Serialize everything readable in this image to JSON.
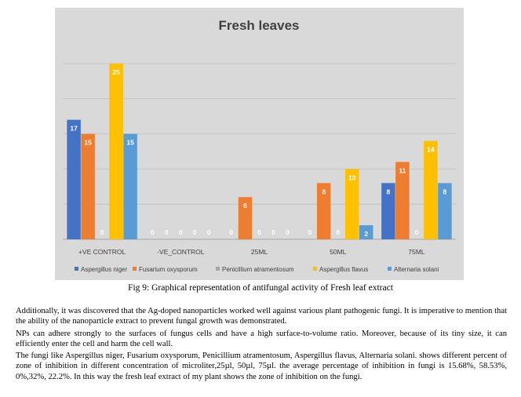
{
  "chart_data": {
    "type": "bar",
    "title": "Fresh leaves",
    "categories": [
      "+VE CONTROL",
      "-VE_CONTROL",
      "25ML",
      "50ML",
      "75ML"
    ],
    "series": [
      {
        "name": "Aspergillus niger",
        "color": "#4472c4",
        "values": [
          17,
          0,
          0,
          0,
          8
        ]
      },
      {
        "name": "Fusarium oxysporum",
        "color": "#ed7d31",
        "values": [
          15,
          0,
          6,
          8,
          11
        ]
      },
      {
        "name": "Penicillium atramentosum",
        "color": "#a5a5a5",
        "values": [
          0,
          0,
          0,
          0,
          0
        ]
      },
      {
        "name": "Aspergillus flavus",
        "color": "#ffc000",
        "values": [
          25,
          0,
          0,
          10,
          14
        ]
      },
      {
        "name": "Alternaria solani",
        "color": "#5b9bd5",
        "values": [
          15,
          0,
          0,
          2,
          8
        ]
      }
    ],
    "ylim": [
      0,
      25
    ],
    "grid": true,
    "legend": "bottom",
    "background": "#d9d9d9"
  },
  "caption": "Fig 9:  Graphical representation of antifungal activity of Fresh leaf extract",
  "paragraphs": [
    "Additionally, it was discovered that the Ag-doped nanoparticles worked well against various plant pathogenic fungi. It is imperative to mention that the ability of the nanoparticle extract to prevent fungal growth was demonstrated.",
    "NPs can adhere strongly to the surfaces of fungus cells and have a high surface-to-volume ratio. Moreover, because of its tiny size, it can efficiently enter the cell and harm the cell wall.",
    "The fungi like Aspergillus niger, Fusarium oxysporum, Penicillium atramentosum, Aspergillus flavus, Alternaria solani. shows different percent of zone of inhibition in different concentration of microliter,25µl, 50µl, 75µl. the average percentage of inhibition in fungi is 15.68%, 58.53%, 0%,32%, 22.2%. In this way the fresh leaf extract of my plant shows the zone of inhibition on the fungi."
  ]
}
